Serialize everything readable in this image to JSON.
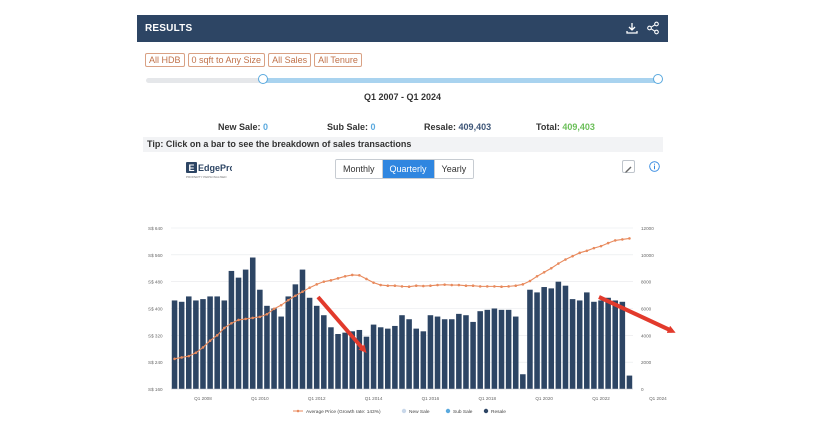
{
  "header": {
    "title": "RESULTS",
    "download_icon": "download-icon",
    "share_icon": "share-icon"
  },
  "filters": [
    "All HDB",
    "0 sqft to Any Size",
    "All Sales",
    "All Tenure"
  ],
  "range": {
    "label": "Q1 2007 - Q1 2024",
    "start_fraction": 0.23,
    "end_fraction": 1.0
  },
  "totals": {
    "new_sale_label": "New Sale:",
    "new_sale_value": "0",
    "sub_sale_label": "Sub Sale:",
    "sub_sale_value": "0",
    "resale_label": "Resale:",
    "resale_value": "409,403",
    "total_label": "Total:",
    "total_value": "409,403"
  },
  "tip": "Tip: Click on a bar to see the breakdown of sales transactions",
  "logo": {
    "text": "EdgeProp",
    "tagline": "PROPERTY PERSONALISED"
  },
  "period_toggle": {
    "options": [
      "Monthly",
      "Quarterly",
      "Yearly"
    ],
    "selected": "Quarterly"
  },
  "colors": {
    "header": "#2d4564",
    "bar": "#2d4564",
    "line": "#e88a5d",
    "accent": "#2f86e0",
    "arrow": "#e23a2c"
  },
  "chart_data": {
    "type": "bar",
    "title": "",
    "x_tick_labels": [
      "Q1 2008",
      "Q1 2010",
      "Q1 2012",
      "Q1 2014",
      "Q1 2016",
      "Q1 2018",
      "Q1 2020",
      "Q1 2022",
      "Q1 2024"
    ],
    "y_left_ticks": [
      "S$ 160",
      "S$ 240",
      "S$ 320",
      "S$ 400",
      "S$ 480",
      "S$ 560",
      "S$ 640"
    ],
    "y_left_range": [
      160,
      640
    ],
    "y_right_ticks": [
      "0",
      "2000",
      "4000",
      "6000",
      "8000",
      "10000",
      "12000"
    ],
    "y_right_range": [
      0,
      12000
    ],
    "legend": [
      {
        "name": "Average Price (Growth rate: 143%)",
        "color": "#e88a5d",
        "marker": "line"
      },
      {
        "name": "New Sale",
        "color": "#c9d8ea",
        "marker": "dot"
      },
      {
        "name": "Sub Sale",
        "color": "#5aa9de",
        "marker": "dot"
      },
      {
        "name": "Resale",
        "color": "#2d4564",
        "marker": "dot"
      }
    ],
    "legend_position": "bottom",
    "grid": true,
    "series": [
      {
        "name": "Resale",
        "axis": "right",
        "values": [
          6600,
          6500,
          6900,
          6600,
          6700,
          6900,
          6900,
          6600,
          8800,
          8300,
          8900,
          9800,
          7400,
          6200,
          6000,
          5400,
          6900,
          7800,
          8900,
          6800,
          6200,
          5500,
          4600,
          4100,
          4200,
          4300,
          4400,
          3900,
          4800,
          4600,
          4500,
          4700,
          5500,
          5200,
          4500,
          4300,
          5500,
          5400,
          5200,
          5200,
          5600,
          5500,
          5000,
          5800,
          5900,
          6000,
          5900,
          5900,
          5400,
          1100,
          7400,
          7200,
          7600,
          7500,
          8000,
          7700,
          6700,
          6600,
          7200,
          6500,
          6600,
          6800,
          6600,
          6500,
          1000
        ]
      },
      {
        "name": "Average Price",
        "axis": "left",
        "values": [
          250,
          254,
          258,
          268,
          284,
          304,
          320,
          342,
          356,
          366,
          369,
          372,
          375,
          383,
          399,
          410,
          425,
          438,
          450,
          462,
          472,
          480,
          484,
          490,
          496,
          500,
          499,
          488,
          477,
          470,
          468,
          468,
          466,
          465,
          468,
          467,
          468,
          470,
          471,
          470,
          470,
          468,
          468,
          466,
          466,
          466,
          465,
          466,
          468,
          472,
          482,
          496,
          508,
          520,
          534,
          546,
          556,
          566,
          572,
          580,
          586,
          595,
          603,
          606,
          609
        ]
      }
    ]
  }
}
